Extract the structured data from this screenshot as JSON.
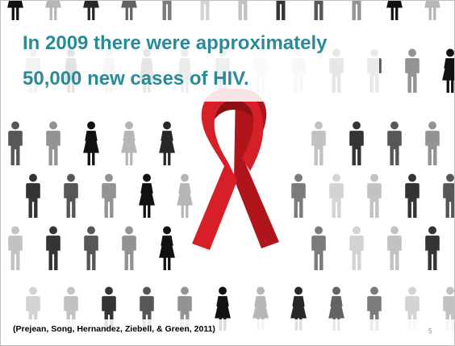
{
  "slide": {
    "title_lines": [
      "In 2009 there were approximately",
      "50,000 new cases of HIV."
    ],
    "citation": "(Prejean, Song, Hernandez, Ziebell, & Green, 2011)",
    "slide_number": "5"
  },
  "colors": {
    "title": "#2b8a97",
    "ribbon": "#d61f26",
    "people": "#111111"
  },
  "icons": {
    "background": "person-icon",
    "center": "awareness-ribbon-icon"
  }
}
